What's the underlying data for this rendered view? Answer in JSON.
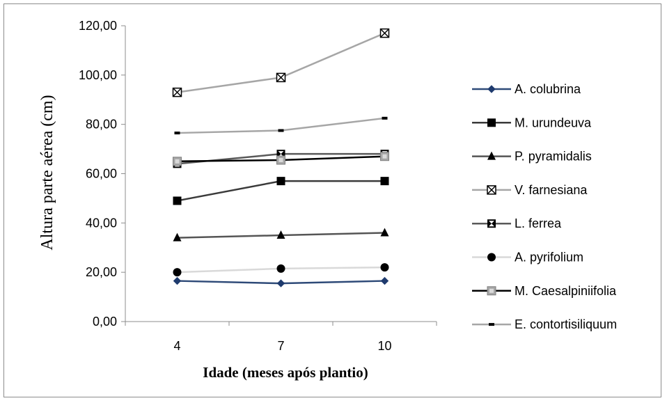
{
  "chart_data": {
    "type": "line",
    "categories": [
      "4",
      "7",
      "10"
    ],
    "xlabel": "Idade (meses após plantio)",
    "ylabel": "Altura parte aérea (cm)",
    "ylim": [
      0,
      120
    ],
    "yticks": [
      "0,00",
      "20,00",
      "40,00",
      "60,00",
      "80,00",
      "100,00",
      "120,00"
    ],
    "grid": false,
    "legend_position": "right",
    "series": [
      {
        "name": "A. colubrina",
        "values": [
          16.5,
          15.5,
          16.5
        ],
        "color": "#2e4a78",
        "marker": "diamond"
      },
      {
        "name": "M. urundeuva",
        "values": [
          49.0,
          57.0,
          57.0
        ],
        "color": "#3a3a3a",
        "marker": "square"
      },
      {
        "name": "P. pyramidalis",
        "values": [
          34.0,
          35.0,
          36.0
        ],
        "color": "#555555",
        "marker": "triangle"
      },
      {
        "name": "V. farnesiana",
        "values": [
          93.0,
          99.0,
          117.0
        ],
        "color": "#a6a6a6",
        "marker": "xsquare"
      },
      {
        "name": "L. ferrea",
        "values": [
          64.0,
          68.0,
          68.0
        ],
        "color": "#595959",
        "marker": "hourglass"
      },
      {
        "name": "A. pyrifolium",
        "values": [
          20.0,
          21.5,
          22.0
        ],
        "color": "#d9d9d9",
        "marker": "circle"
      },
      {
        "name": "M. Caesalpiniifolia",
        "values": [
          65.0,
          65.5,
          67.0
        ],
        "color": "#000000",
        "marker": "graysquare"
      },
      {
        "name": "E. contortisiliquum",
        "values": [
          76.5,
          77.5,
          82.5
        ],
        "color": "#a6a6a6",
        "marker": "dash"
      }
    ]
  }
}
